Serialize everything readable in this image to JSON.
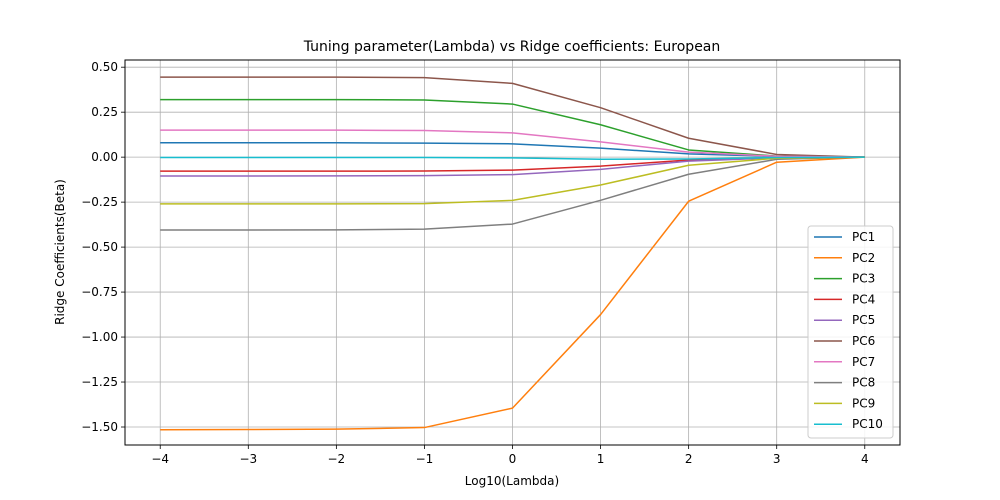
{
  "chart_data": {
    "type": "line",
    "title": "Tuning parameter(Lambda) vs Ridge coefficients: European",
    "xlabel": "Log10(Lambda)",
    "ylabel": "Ridge Coefficients(Beta)",
    "x": [
      -4,
      -3,
      -2,
      -1,
      0,
      1,
      2,
      3,
      4
    ],
    "x_ticks": [
      -4,
      -3,
      -2,
      -1,
      0,
      1,
      2,
      3,
      4
    ],
    "x_tick_labels": [
      "−4",
      "−3",
      "−2",
      "−1",
      "0",
      "1",
      "2",
      "3",
      "4"
    ],
    "y_ticks": [
      0.5,
      0.25,
      0.0,
      -0.25,
      -0.5,
      -0.75,
      -1.0,
      -1.25,
      -1.5
    ],
    "y_tick_labels": [
      "0.50",
      "0.25",
      "0.00",
      "−0.25",
      "−0.50",
      "−0.75",
      "−1.00",
      "−1.25",
      "−1.50"
    ],
    "xlim": [
      -4.4,
      4.4
    ],
    "ylim": [
      -1.6,
      0.54
    ],
    "grid": true,
    "legend_position": "lower-right",
    "series": [
      {
        "name": "PC1",
        "color": "#1f77b4",
        "values": [
          0.08,
          0.08,
          0.08,
          0.078,
          0.074,
          0.05,
          0.018,
          0.004,
          0.0
        ]
      },
      {
        "name": "PC2",
        "color": "#ff7f0e",
        "values": [
          -1.515,
          -1.514,
          -1.512,
          -1.503,
          -1.395,
          -0.875,
          -0.245,
          -0.028,
          0.0
        ]
      },
      {
        "name": "PC3",
        "color": "#2ca02c",
        "values": [
          0.32,
          0.32,
          0.32,
          0.318,
          0.295,
          0.18,
          0.04,
          0.006,
          0.0
        ]
      },
      {
        "name": "PC4",
        "color": "#d62728",
        "values": [
          -0.078,
          -0.078,
          -0.078,
          -0.077,
          -0.072,
          -0.05,
          -0.016,
          -0.003,
          0.0
        ]
      },
      {
        "name": "PC5",
        "color": "#9467bd",
        "values": [
          -0.105,
          -0.105,
          -0.104,
          -0.103,
          -0.097,
          -0.068,
          -0.022,
          -0.004,
          0.0
        ]
      },
      {
        "name": "PC6",
        "color": "#8c564b",
        "values": [
          0.445,
          0.445,
          0.445,
          0.442,
          0.41,
          0.275,
          0.105,
          0.015,
          0.0
        ]
      },
      {
        "name": "PC7",
        "color": "#e377c2",
        "values": [
          0.15,
          0.15,
          0.15,
          0.148,
          0.135,
          0.085,
          0.028,
          0.005,
          0.0
        ]
      },
      {
        "name": "PC8",
        "color": "#7f7f7f",
        "values": [
          -0.405,
          -0.405,
          -0.404,
          -0.4,
          -0.372,
          -0.24,
          -0.095,
          -0.012,
          0.0
        ]
      },
      {
        "name": "PC9",
        "color": "#bcbd22",
        "values": [
          -0.26,
          -0.26,
          -0.26,
          -0.258,
          -0.24,
          -0.155,
          -0.045,
          -0.006,
          0.0
        ]
      },
      {
        "name": "PC10",
        "color": "#17becf",
        "values": [
          -0.002,
          -0.002,
          -0.002,
          -0.002,
          -0.004,
          -0.012,
          -0.01,
          -0.002,
          0.0
        ]
      }
    ]
  }
}
